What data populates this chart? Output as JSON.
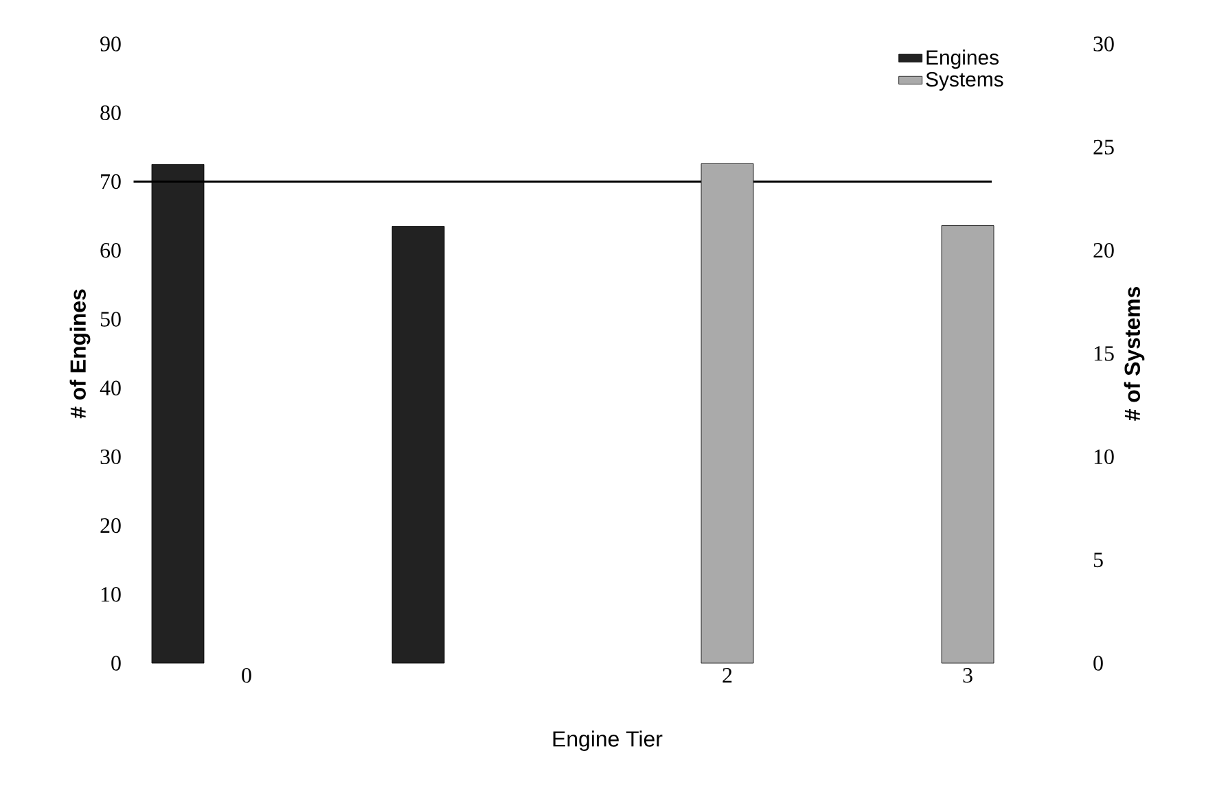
{
  "chart_data": {
    "type": "bar",
    "xlabel": "Engine Tier",
    "ylabel": "# of Engines",
    "y2label": "# of Systems",
    "categories": [
      "0",
      null,
      "2",
      "3"
    ],
    "series": [
      {
        "name": "Engines",
        "color": "#222222",
        "values": [
          72.5,
          63.5,
          null,
          null
        ]
      },
      {
        "name": "Systems",
        "color": "#aaaaaa",
        "axis": "y2",
        "values": [
          null,
          null,
          24.2,
          21.2
        ]
      }
    ],
    "ylim": [
      0,
      90
    ],
    "yticks": [
      0,
      10,
      20,
      30,
      40,
      50,
      60,
      70,
      80,
      90
    ],
    "y2lim": [
      0,
      30
    ],
    "y2ticks": [
      0,
      5,
      10,
      15,
      20,
      25,
      30
    ],
    "ref_lines": [
      {
        "axis": "y",
        "value": 70
      }
    ],
    "legend": "top right",
    "grid": false
  }
}
